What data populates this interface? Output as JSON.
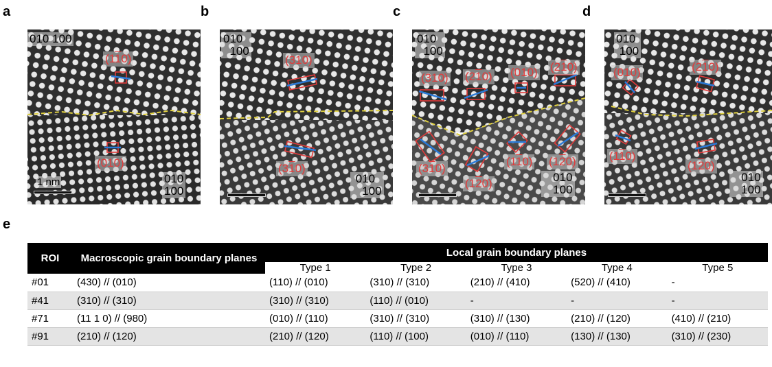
{
  "panel_labels": [
    "a",
    "b",
    "c",
    "d",
    "e"
  ],
  "axis": {
    "a": "010",
    "b": "100"
  },
  "scale_label": "1 nm",
  "panels": {
    "a": {
      "annotations": [
        "(110)",
        "(010)"
      ]
    },
    "b": {
      "annotations": [
        "(310)",
        "(310)"
      ]
    },
    "c": {
      "annotations": [
        "(310)",
        "(210)",
        "(010)",
        "(210)",
        "(310)",
        "(120)",
        "(110)",
        "(120)"
      ]
    },
    "d": {
      "annotations": [
        "(010)",
        "(210)",
        "(110)",
        "(120)"
      ]
    }
  },
  "table": {
    "col_roi": "ROI",
    "col_macro": "Macroscopic grain boundary planes",
    "col_local": "Local grain boundary planes",
    "types": [
      "Type 1",
      "Type 2",
      "Type 3",
      "Type 4",
      "Type 5"
    ],
    "rows": [
      {
        "roi": "#01",
        "macro": "(430) // (010)",
        "t": [
          "(110) // (010)",
          "(310) // (310)",
          "(210) // (410)",
          "(520) // (410)",
          "-"
        ]
      },
      {
        "roi": "#41",
        "macro": "(310) // (310)",
        "t": [
          "(310) // (310)",
          "(110) // (010)",
          "-",
          "-",
          "-"
        ]
      },
      {
        "roi": "#71",
        "macro": "(11 1 0) // (980)",
        "t": [
          "(010) // (110)",
          "(310) // (310)",
          "(310) // (130)",
          "(210) // (120)",
          "(410) // (210)"
        ]
      },
      {
        "roi": "#91",
        "macro": "(210) // (120)",
        "t": [
          "(210) // (120)",
          "(110) // (100)",
          "(010) // (110)",
          "(130) // (130)",
          "(310) // (230)"
        ]
      }
    ]
  }
}
